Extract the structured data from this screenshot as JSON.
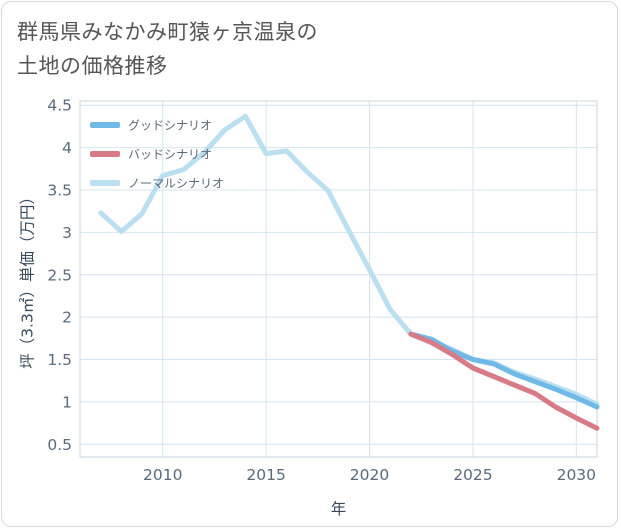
{
  "title_line1": "群馬県みなかみ町猿ヶ京温泉の",
  "title_line2": "土地の価格推移",
  "colors": {
    "good": "#6fb9e8",
    "bad": "#d97b86",
    "normal": "#b9dff0",
    "grid": "#d4e4ee"
  },
  "chart_data": {
    "type": "line",
    "title": "群馬県みなかみ町猿ヶ京温泉の土地の価格推移",
    "xlabel": "年",
    "ylabel": "坪（3.3㎡）単価（万円）",
    "xlim": [
      2006,
      2031
    ],
    "ylim": [
      0.35,
      4.55
    ],
    "xticks": [
      2010,
      2015,
      2020,
      2025,
      2030
    ],
    "yticks": [
      0.5,
      1,
      1.5,
      2,
      2.5,
      3,
      3.5,
      4,
      4.5
    ],
    "series": [
      {
        "name": "グッドシナリオ",
        "color": "#6fb9e8",
        "x": [
          2022,
          2023,
          2024,
          2025,
          2026,
          2027,
          2028,
          2029,
          2030,
          2031
        ],
        "values": [
          1.8,
          1.74,
          1.6,
          1.5,
          1.45,
          1.33,
          1.24,
          1.15,
          1.05,
          0.94
        ]
      },
      {
        "name": "バッドシナリオ",
        "color": "#d97b86",
        "x": [
          2022,
          2023,
          2024,
          2025,
          2026,
          2027,
          2028,
          2029,
          2030,
          2031
        ],
        "values": [
          1.8,
          1.7,
          1.56,
          1.4,
          1.3,
          1.2,
          1.1,
          0.94,
          0.81,
          0.69
        ]
      },
      {
        "name": "ノーマルシナリオ",
        "color": "#b9dff0",
        "x": [
          2007,
          2008,
          2009,
          2010,
          2011,
          2012,
          2013,
          2014,
          2015,
          2016,
          2017,
          2018,
          2019,
          2020,
          2021,
          2022,
          2023,
          2024,
          2025,
          2026,
          2027,
          2028,
          2029,
          2030,
          2031
        ],
        "values": [
          3.23,
          3.01,
          3.22,
          3.67,
          3.74,
          3.94,
          4.21,
          4.37,
          3.93,
          3.96,
          3.71,
          3.49,
          3.02,
          2.56,
          2.09,
          1.8,
          1.7,
          1.62,
          1.5,
          1.46,
          1.35,
          1.27,
          1.18,
          1.09,
          0.97
        ]
      }
    ],
    "legend_position": "top-left"
  }
}
